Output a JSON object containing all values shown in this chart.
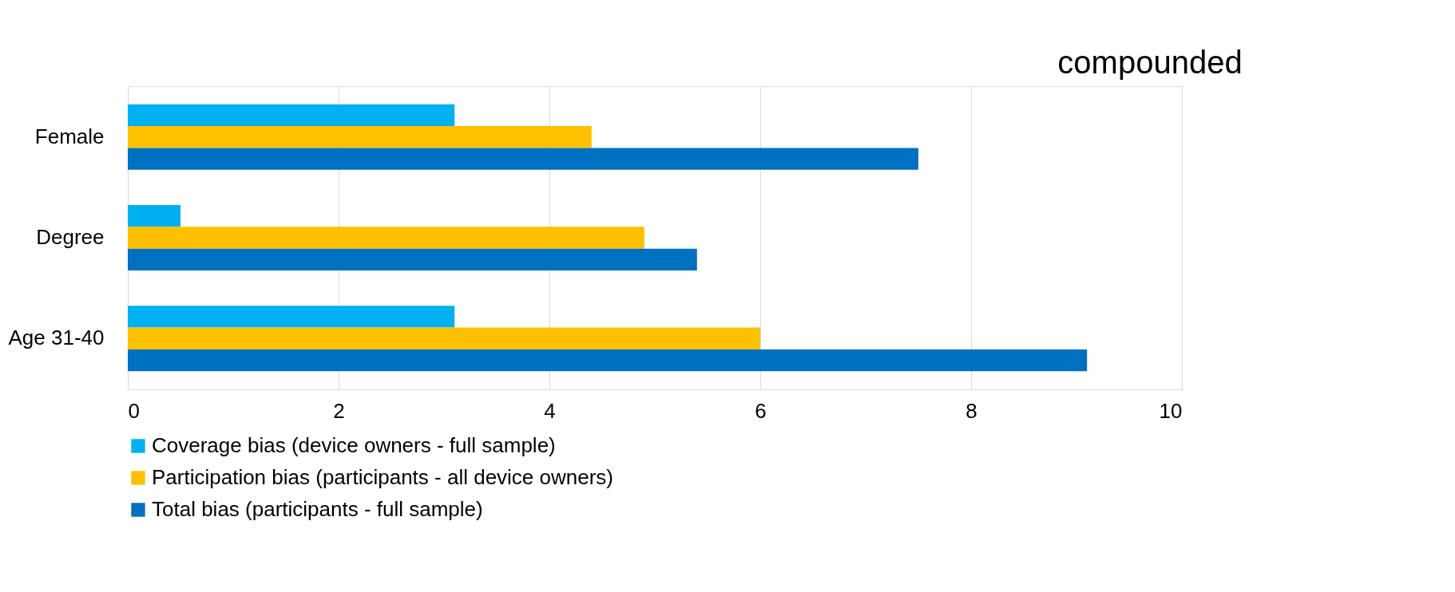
{
  "chart_data": {
    "type": "bar",
    "orientation": "horizontal",
    "categories": [
      "Female",
      "Degree",
      "Age 31-40"
    ],
    "series": [
      {
        "name": "Coverage bias (device owners - full sample)",
        "color": "#00b0f0",
        "values": [
          3.1,
          0.5,
          3.1
        ]
      },
      {
        "name": "Participation bias (participants - all device owners)",
        "color": "#ffc000",
        "values": [
          4.4,
          4.9,
          6.0
        ]
      },
      {
        "name": "Total bias (participants - full sample)",
        "color": "#0070c0",
        "values": [
          7.5,
          5.4,
          9.1
        ]
      }
    ],
    "xlim": [
      0,
      10
    ],
    "xticks": [
      0,
      2,
      4,
      6,
      8,
      10
    ],
    "grid": "x",
    "legend": "bottom",
    "annotations": [
      "compounded"
    ]
  }
}
